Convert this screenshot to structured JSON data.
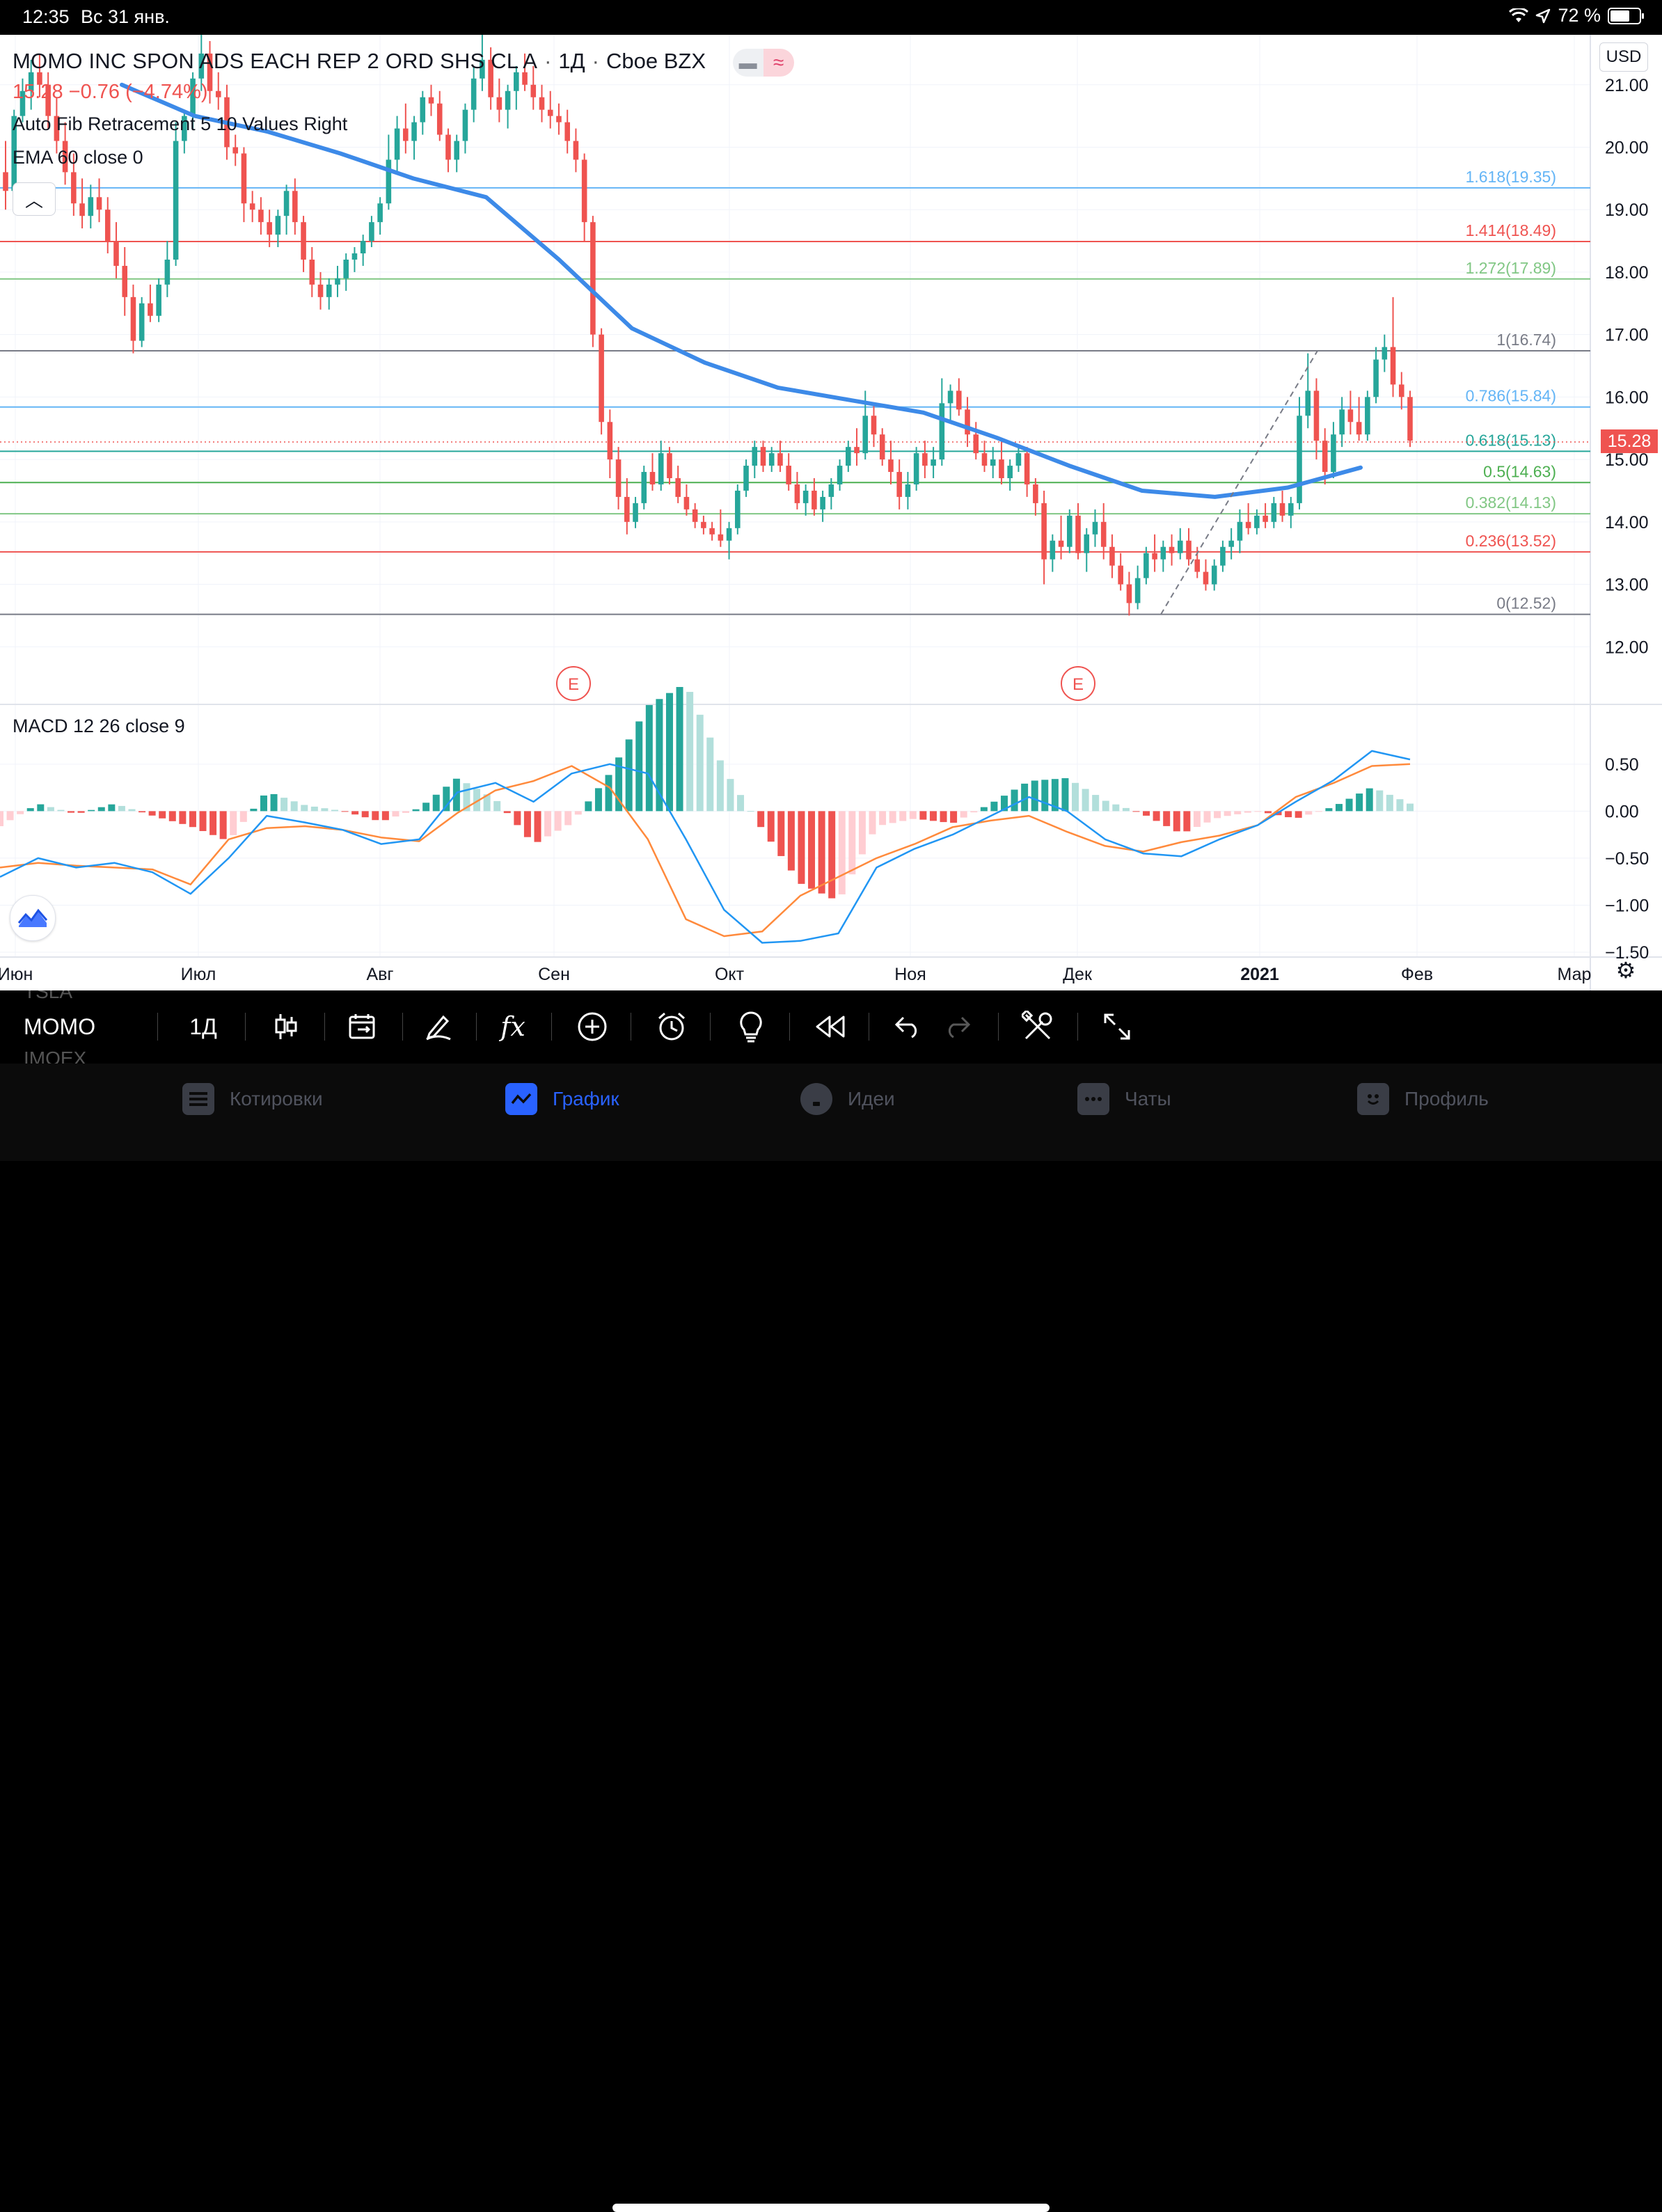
{
  "status_bar": {
    "time": "12:35",
    "date": "Вс 31 янв.",
    "battery": "72 %",
    "battery_level": 0.72
  },
  "legend": {
    "title": "MOMO INC SPON ADS EACH REP 2 ORD SHS CL A",
    "interval": "1Д",
    "exchange": "Cboe BZX",
    "price_line": "15.28  −0.76 (−4.74%)",
    "indicator_fib": "Auto Fib Retracement 5 10 Values Right",
    "indicator_ema": "EMA 60 close 0",
    "collapse_icon": "chevron-up-icon"
  },
  "currency": "USD",
  "last_price": "15.28",
  "macd_label": "MACD 12 26 close 9",
  "colors": {
    "up": "#26a69a",
    "down": "#ef5350",
    "ema": "#3d8ae8",
    "macd": "#2196f3",
    "signal": "#ff8a3c"
  },
  "chart_data": [
    {
      "type": "candlestick",
      "title": "MOMO INC SPON ADS EACH REP 2 ORD SHS CL A",
      "price_axis": [
        21.0,
        20.0,
        19.0,
        18.0,
        17.0,
        16.0,
        15.0,
        14.0,
        13.0,
        12.0
      ],
      "price_axis_labels": [
        "21.00",
        "20.00",
        "19.00",
        "18.00",
        "17.00",
        "16.00",
        "15.00",
        "14.00",
        "13.00",
        "12.00"
      ],
      "ylim": [
        11.1,
        21.8
      ],
      "x_axis_labels": [
        "Июн",
        "Июл",
        "Авг",
        "Сен",
        "Окт",
        "Ноя",
        "Дек",
        "2021",
        "Фев",
        "Мар"
      ],
      "fib_levels": [
        {
          "label": "1.618(19.35)",
          "value": 19.35,
          "color": "#64b5f6"
        },
        {
          "label": "1.414(18.49)",
          "value": 18.49,
          "color": "#ef5350"
        },
        {
          "label": "1.272(17.89)",
          "value": 17.89,
          "color": "#81c784"
        },
        {
          "label": "1(16.74)",
          "value": 16.74,
          "color": "#787b86"
        },
        {
          "label": "0.786(15.84)",
          "value": 15.84,
          "color": "#64b5f6"
        },
        {
          "label": "0.618(15.13)",
          "value": 15.13,
          "color": "#26a69a"
        },
        {
          "label": "0.5(14.63)",
          "value": 14.63,
          "color": "#4caf50"
        },
        {
          "label": "0.382(14.13)",
          "value": 14.13,
          "color": "#81c784"
        },
        {
          "label": "0.236(13.52)",
          "value": 13.52,
          "color": "#ef5350"
        },
        {
          "label": "0(12.52)",
          "value": 12.52,
          "color": "#787b86"
        }
      ],
      "earnings_markers": [
        "E",
        "E"
      ],
      "ohlc": [
        [
          19.6,
          20.1,
          19.0,
          19.3
        ],
        [
          19.3,
          20.6,
          19.2,
          20.5
        ],
        [
          20.5,
          21.1,
          20.4,
          20.9
        ],
        [
          20.9,
          21.4,
          20.6,
          21.2
        ],
        [
          21.2,
          21.5,
          20.8,
          21.0
        ],
        [
          21.0,
          21.2,
          20.3,
          20.5
        ],
        [
          20.5,
          20.8,
          19.9,
          20.1
        ],
        [
          20.1,
          20.4,
          19.4,
          19.6
        ],
        [
          19.6,
          19.9,
          18.9,
          19.1
        ],
        [
          19.1,
          19.5,
          18.7,
          18.9
        ],
        [
          18.9,
          19.4,
          18.7,
          19.2
        ],
        [
          19.2,
          19.5,
          18.8,
          19.0
        ],
        [
          19.0,
          19.2,
          18.3,
          18.5
        ],
        [
          18.5,
          18.8,
          17.9,
          18.1
        ],
        [
          18.1,
          18.4,
          17.3,
          17.6
        ],
        [
          17.6,
          17.8,
          16.7,
          16.9
        ],
        [
          16.9,
          17.6,
          16.8,
          17.5
        ],
        [
          17.5,
          17.8,
          17.2,
          17.3
        ],
        [
          17.3,
          17.9,
          17.2,
          17.8
        ],
        [
          17.8,
          18.5,
          17.6,
          18.2
        ],
        [
          18.2,
          20.4,
          18.1,
          20.1
        ],
        [
          20.1,
          20.6,
          19.9,
          20.5
        ],
        [
          20.5,
          21.2,
          20.3,
          21.1
        ],
        [
          21.1,
          21.8,
          20.9,
          21.5
        ],
        [
          21.5,
          21.7,
          20.7,
          20.9
        ],
        [
          20.9,
          21.2,
          20.6,
          20.8
        ],
        [
          20.8,
          21.0,
          19.8,
          20.0
        ],
        [
          20.0,
          20.2,
          19.7,
          19.9
        ],
        [
          19.9,
          20.0,
          18.8,
          19.1
        ],
        [
          19.1,
          19.3,
          18.8,
          19.0
        ],
        [
          19.0,
          19.2,
          18.6,
          18.8
        ],
        [
          18.8,
          19.0,
          18.4,
          18.6
        ],
        [
          18.6,
          19.0,
          18.4,
          18.9
        ],
        [
          18.9,
          19.4,
          18.6,
          19.3
        ],
        [
          19.3,
          19.5,
          18.6,
          18.8
        ],
        [
          18.8,
          18.9,
          18.0,
          18.2
        ],
        [
          18.2,
          18.4,
          17.6,
          17.8
        ],
        [
          17.8,
          18.0,
          17.4,
          17.6
        ],
        [
          17.6,
          17.9,
          17.4,
          17.8
        ],
        [
          17.8,
          18.1,
          17.6,
          17.9
        ],
        [
          17.9,
          18.3,
          17.7,
          18.2
        ],
        [
          18.2,
          18.4,
          18.0,
          18.3
        ],
        [
          18.3,
          18.6,
          18.1,
          18.5
        ],
        [
          18.5,
          18.9,
          18.4,
          18.8
        ],
        [
          18.8,
          19.2,
          18.6,
          19.1
        ],
        [
          19.1,
          20.2,
          19.0,
          19.8
        ],
        [
          19.8,
          20.5,
          19.6,
          20.3
        ],
        [
          20.3,
          20.7,
          19.9,
          20.1
        ],
        [
          20.1,
          20.5,
          19.8,
          20.4
        ],
        [
          20.4,
          20.9,
          20.2,
          20.8
        ],
        [
          20.8,
          21.0,
          20.5,
          20.7
        ],
        [
          20.7,
          20.9,
          20.1,
          20.2
        ],
        [
          20.2,
          20.3,
          19.6,
          19.8
        ],
        [
          19.8,
          20.2,
          19.6,
          20.1
        ],
        [
          20.1,
          20.7,
          19.9,
          20.6
        ],
        [
          20.6,
          21.3,
          20.4,
          21.1
        ],
        [
          21.1,
          21.9,
          20.9,
          21.4
        ],
        [
          21.4,
          21.6,
          20.6,
          20.8
        ],
        [
          20.8,
          21.1,
          20.4,
          20.6
        ],
        [
          20.6,
          21.0,
          20.3,
          20.9
        ],
        [
          20.9,
          21.3,
          20.6,
          21.2
        ],
        [
          21.2,
          21.5,
          20.9,
          21.0
        ],
        [
          21.0,
          21.3,
          20.6,
          20.8
        ],
        [
          20.8,
          21.0,
          20.4,
          20.6
        ],
        [
          20.6,
          20.9,
          20.3,
          20.5
        ],
        [
          20.5,
          20.7,
          20.2,
          20.4
        ],
        [
          20.4,
          20.6,
          19.9,
          20.1
        ],
        [
          20.1,
          20.3,
          19.6,
          19.8
        ],
        [
          19.8,
          19.9,
          18.5,
          18.8
        ],
        [
          18.8,
          18.9,
          16.8,
          17.0
        ],
        [
          17.0,
          17.1,
          15.4,
          15.6
        ],
        [
          15.6,
          15.8,
          14.7,
          15.0
        ],
        [
          15.0,
          15.2,
          14.2,
          14.4
        ],
        [
          14.4,
          14.7,
          13.8,
          14.0
        ],
        [
          14.0,
          14.4,
          13.9,
          14.3
        ],
        [
          14.3,
          14.9,
          14.2,
          14.8
        ],
        [
          14.8,
          15.1,
          14.5,
          14.6
        ],
        [
          14.6,
          15.3,
          14.5,
          15.1
        ],
        [
          15.1,
          15.2,
          14.6,
          14.7
        ],
        [
          14.7,
          14.9,
          14.3,
          14.4
        ],
        [
          14.4,
          14.6,
          14.1,
          14.2
        ],
        [
          14.2,
          14.3,
          13.9,
          14.0
        ],
        [
          14.0,
          14.1,
          13.8,
          13.9
        ],
        [
          13.9,
          14.0,
          13.7,
          13.8
        ],
        [
          13.8,
          14.2,
          13.6,
          13.7
        ],
        [
          13.7,
          14.0,
          13.4,
          13.9
        ],
        [
          13.9,
          14.6,
          13.8,
          14.5
        ],
        [
          14.5,
          15.0,
          14.4,
          14.9
        ],
        [
          14.9,
          15.3,
          14.7,
          15.2
        ],
        [
          15.2,
          15.3,
          14.8,
          14.9
        ],
        [
          14.9,
          15.2,
          14.8,
          15.1
        ],
        [
          15.1,
          15.3,
          14.8,
          14.9
        ],
        [
          14.9,
          15.1,
          14.5,
          14.6
        ],
        [
          14.6,
          14.8,
          14.2,
          14.3
        ],
        [
          14.3,
          14.6,
          14.1,
          14.5
        ],
        [
          14.5,
          14.7,
          14.1,
          14.2
        ],
        [
          14.2,
          14.5,
          14.0,
          14.4
        ],
        [
          14.4,
          14.7,
          14.2,
          14.6
        ],
        [
          14.6,
          15.0,
          14.5,
          14.9
        ],
        [
          14.9,
          15.3,
          14.8,
          15.2
        ],
        [
          15.2,
          15.5,
          14.9,
          15.1
        ],
        [
          15.1,
          16.1,
          15.0,
          15.7
        ],
        [
          15.7,
          15.9,
          15.2,
          15.4
        ],
        [
          15.4,
          15.5,
          14.9,
          15.0
        ],
        [
          15.0,
          15.3,
          14.6,
          14.8
        ],
        [
          14.8,
          15.0,
          14.2,
          14.4
        ],
        [
          14.4,
          14.8,
          14.2,
          14.6
        ],
        [
          14.6,
          15.2,
          14.5,
          15.1
        ],
        [
          15.1,
          15.3,
          14.7,
          14.9
        ],
        [
          14.9,
          15.2,
          14.7,
          15.0
        ],
        [
          15.0,
          16.3,
          14.9,
          15.9
        ],
        [
          15.9,
          16.2,
          15.6,
          16.1
        ],
        [
          16.1,
          16.3,
          15.7,
          15.8
        ],
        [
          15.8,
          16.0,
          15.2,
          15.4
        ],
        [
          15.4,
          15.6,
          15.0,
          15.1
        ],
        [
          15.1,
          15.3,
          14.8,
          14.9
        ],
        [
          14.9,
          15.2,
          14.7,
          15.0
        ],
        [
          15.0,
          15.3,
          14.6,
          14.7
        ],
        [
          14.7,
          15.0,
          14.5,
          14.9
        ],
        [
          14.9,
          15.2,
          14.8,
          15.1
        ],
        [
          15.1,
          15.2,
          14.4,
          14.6
        ],
        [
          14.6,
          14.7,
          14.1,
          14.3
        ],
        [
          14.3,
          14.5,
          13.0,
          13.4
        ],
        [
          13.4,
          13.8,
          13.2,
          13.7
        ],
        [
          13.7,
          14.1,
          13.4,
          13.6
        ],
        [
          13.6,
          14.2,
          13.5,
          14.1
        ],
        [
          14.1,
          14.3,
          13.4,
          13.5
        ],
        [
          13.5,
          13.9,
          13.2,
          13.8
        ],
        [
          13.8,
          14.2,
          13.6,
          14.0
        ],
        [
          14.0,
          14.3,
          13.4,
          13.6
        ],
        [
          13.6,
          13.8,
          13.1,
          13.3
        ],
        [
          13.3,
          13.5,
          12.9,
          13.0
        ],
        [
          13.0,
          13.2,
          12.5,
          12.7
        ],
        [
          12.7,
          13.3,
          12.6,
          13.1
        ],
        [
          13.1,
          13.6,
          13.0,
          13.5
        ],
        [
          13.5,
          13.8,
          13.2,
          13.4
        ],
        [
          13.4,
          13.7,
          13.2,
          13.6
        ],
        [
          13.6,
          13.8,
          13.3,
          13.5
        ],
        [
          13.5,
          13.9,
          13.4,
          13.7
        ],
        [
          13.7,
          13.9,
          13.3,
          13.4
        ],
        [
          13.4,
          13.6,
          13.1,
          13.2
        ],
        [
          13.2,
          13.4,
          12.9,
          13.0
        ],
        [
          13.0,
          13.4,
          12.9,
          13.3
        ],
        [
          13.3,
          13.7,
          13.2,
          13.6
        ],
        [
          13.6,
          13.9,
          13.4,
          13.7
        ],
        [
          13.7,
          14.2,
          13.5,
          14.0
        ],
        [
          14.0,
          14.3,
          13.8,
          13.9
        ],
        [
          13.9,
          14.2,
          13.8,
          14.1
        ],
        [
          14.1,
          14.3,
          13.9,
          14.0
        ],
        [
          14.0,
          14.4,
          13.9,
          14.3
        ],
        [
          14.3,
          14.5,
          14.0,
          14.1
        ],
        [
          14.1,
          14.4,
          13.9,
          14.3
        ],
        [
          14.3,
          16.0,
          14.2,
          15.7
        ],
        [
          15.7,
          16.7,
          15.5,
          16.1
        ],
        [
          16.1,
          16.3,
          15.0,
          15.3
        ],
        [
          15.3,
          15.5,
          14.6,
          14.8
        ],
        [
          14.8,
          15.6,
          14.7,
          15.4
        ],
        [
          15.4,
          16.0,
          15.2,
          15.8
        ],
        [
          15.8,
          16.1,
          15.4,
          15.6
        ],
        [
          15.6,
          16.0,
          15.3,
          15.4
        ],
        [
          15.4,
          16.1,
          15.3,
          16.0
        ],
        [
          16.0,
          16.8,
          15.9,
          16.6
        ],
        [
          16.6,
          17.0,
          16.4,
          16.8
        ],
        [
          16.8,
          17.6,
          16.0,
          16.2
        ],
        [
          16.2,
          16.4,
          15.8,
          16.0
        ],
        [
          16.0,
          16.1,
          15.2,
          15.3
        ]
      ],
      "ema60": [
        21.0,
        20.5,
        20.25,
        19.9,
        19.5,
        19.2,
        18.2,
        17.1,
        16.55,
        16.15,
        15.95,
        15.75,
        15.35,
        14.9,
        14.5,
        14.4,
        14.55,
        14.87
      ],
      "trend_line": {
        "from": 12.52,
        "to": 16.74
      }
    },
    {
      "type": "line",
      "title": "MACD 12 26 close 9",
      "y_axis": [
        0.5,
        0.0,
        -0.5,
        -1.0,
        -1.5
      ],
      "y_axis_labels": [
        "0.50",
        "0.00",
        "−0.50",
        "−1.00",
        "−1.50"
      ],
      "ylim": [
        -1.5,
        0.78
      ],
      "macd": [
        -0.7,
        -0.5,
        -0.6,
        -0.55,
        -0.65,
        -0.88,
        -0.5,
        -0.05,
        -0.12,
        -0.2,
        -0.35,
        -0.3,
        0.2,
        0.3,
        0.1,
        0.4,
        0.5,
        0.4,
        -0.3,
        -1.05,
        -1.4,
        -1.38,
        -1.3,
        -0.6,
        -0.4,
        -0.25,
        -0.05,
        0.15,
        0.0,
        -0.3,
        -0.45,
        -0.48,
        -0.3,
        -0.15,
        0.1,
        0.33,
        0.64,
        0.55
      ],
      "signal": [
        -0.6,
        -0.55,
        -0.58,
        -0.6,
        -0.62,
        -0.78,
        -0.3,
        -0.18,
        -0.16,
        -0.2,
        -0.28,
        -0.32,
        -0.02,
        0.22,
        0.32,
        0.48,
        0.25,
        -0.3,
        -1.15,
        -1.33,
        -1.28,
        -0.9,
        -0.7,
        -0.5,
        -0.35,
        -0.17,
        -0.1,
        -0.05,
        -0.22,
        -0.37,
        -0.43,
        -0.33,
        -0.26,
        -0.15,
        0.15,
        0.3,
        0.48,
        0.5
      ]
    }
  ],
  "toolbar": {
    "symbols": [
      "TSLA",
      "MOMO",
      "IMOEX"
    ],
    "interval": "1Д",
    "tools": [
      "candles-icon",
      "replay-calendar-icon",
      "pen-icon",
      "fx-icon",
      "plus-circle-icon",
      "alarm-icon",
      "lightbulb-icon",
      "rewind-icon",
      "undo-icon",
      "redo-icon",
      "tools-icon",
      "fullscreen-icon"
    ]
  },
  "tabbar": {
    "tabs": [
      {
        "label": "Котировки",
        "icon": "list-icon"
      },
      {
        "label": "График",
        "icon": "chart-icon"
      },
      {
        "label": "Идеи",
        "icon": "bulb-icon"
      },
      {
        "label": "Чаты",
        "icon": "chat-icon"
      },
      {
        "label": "Профиль",
        "icon": "smile-icon"
      }
    ]
  }
}
